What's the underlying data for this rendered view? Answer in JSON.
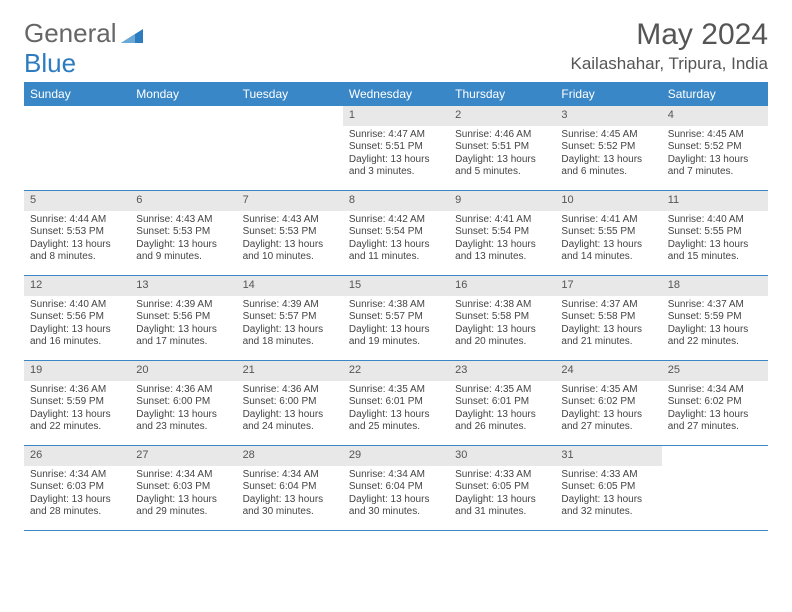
{
  "brand": {
    "part1": "General",
    "part2": "Blue"
  },
  "title": "May 2024",
  "location": "Kailashahar, Tripura, India",
  "colors": {
    "header_bg": "#3a87c7",
    "daynum_bg": "#e8e8e8",
    "border": "#3a87c7",
    "brand_gray": "#666666",
    "brand_blue": "#2d7cc0"
  },
  "dow": [
    "Sunday",
    "Monday",
    "Tuesday",
    "Wednesday",
    "Thursday",
    "Friday",
    "Saturday"
  ],
  "weeks": [
    [
      {
        "n": "",
        "sr": "",
        "ss": "",
        "dl": ""
      },
      {
        "n": "",
        "sr": "",
        "ss": "",
        "dl": ""
      },
      {
        "n": "",
        "sr": "",
        "ss": "",
        "dl": ""
      },
      {
        "n": "1",
        "sr": "4:47 AM",
        "ss": "5:51 PM",
        "dl": "13 hours and 3 minutes."
      },
      {
        "n": "2",
        "sr": "4:46 AM",
        "ss": "5:51 PM",
        "dl": "13 hours and 5 minutes."
      },
      {
        "n": "3",
        "sr": "4:45 AM",
        "ss": "5:52 PM",
        "dl": "13 hours and 6 minutes."
      },
      {
        "n": "4",
        "sr": "4:45 AM",
        "ss": "5:52 PM",
        "dl": "13 hours and 7 minutes."
      }
    ],
    [
      {
        "n": "5",
        "sr": "4:44 AM",
        "ss": "5:53 PM",
        "dl": "13 hours and 8 minutes."
      },
      {
        "n": "6",
        "sr": "4:43 AM",
        "ss": "5:53 PM",
        "dl": "13 hours and 9 minutes."
      },
      {
        "n": "7",
        "sr": "4:43 AM",
        "ss": "5:53 PM",
        "dl": "13 hours and 10 minutes."
      },
      {
        "n": "8",
        "sr": "4:42 AM",
        "ss": "5:54 PM",
        "dl": "13 hours and 11 minutes."
      },
      {
        "n": "9",
        "sr": "4:41 AM",
        "ss": "5:54 PM",
        "dl": "13 hours and 13 minutes."
      },
      {
        "n": "10",
        "sr": "4:41 AM",
        "ss": "5:55 PM",
        "dl": "13 hours and 14 minutes."
      },
      {
        "n": "11",
        "sr": "4:40 AM",
        "ss": "5:55 PM",
        "dl": "13 hours and 15 minutes."
      }
    ],
    [
      {
        "n": "12",
        "sr": "4:40 AM",
        "ss": "5:56 PM",
        "dl": "13 hours and 16 minutes."
      },
      {
        "n": "13",
        "sr": "4:39 AM",
        "ss": "5:56 PM",
        "dl": "13 hours and 17 minutes."
      },
      {
        "n": "14",
        "sr": "4:39 AM",
        "ss": "5:57 PM",
        "dl": "13 hours and 18 minutes."
      },
      {
        "n": "15",
        "sr": "4:38 AM",
        "ss": "5:57 PM",
        "dl": "13 hours and 19 minutes."
      },
      {
        "n": "16",
        "sr": "4:38 AM",
        "ss": "5:58 PM",
        "dl": "13 hours and 20 minutes."
      },
      {
        "n": "17",
        "sr": "4:37 AM",
        "ss": "5:58 PM",
        "dl": "13 hours and 21 minutes."
      },
      {
        "n": "18",
        "sr": "4:37 AM",
        "ss": "5:59 PM",
        "dl": "13 hours and 22 minutes."
      }
    ],
    [
      {
        "n": "19",
        "sr": "4:36 AM",
        "ss": "5:59 PM",
        "dl": "13 hours and 22 minutes."
      },
      {
        "n": "20",
        "sr": "4:36 AM",
        "ss": "6:00 PM",
        "dl": "13 hours and 23 minutes."
      },
      {
        "n": "21",
        "sr": "4:36 AM",
        "ss": "6:00 PM",
        "dl": "13 hours and 24 minutes."
      },
      {
        "n": "22",
        "sr": "4:35 AM",
        "ss": "6:01 PM",
        "dl": "13 hours and 25 minutes."
      },
      {
        "n": "23",
        "sr": "4:35 AM",
        "ss": "6:01 PM",
        "dl": "13 hours and 26 minutes."
      },
      {
        "n": "24",
        "sr": "4:35 AM",
        "ss": "6:02 PM",
        "dl": "13 hours and 27 minutes."
      },
      {
        "n": "25",
        "sr": "4:34 AM",
        "ss": "6:02 PM",
        "dl": "13 hours and 27 minutes."
      }
    ],
    [
      {
        "n": "26",
        "sr": "4:34 AM",
        "ss": "6:03 PM",
        "dl": "13 hours and 28 minutes."
      },
      {
        "n": "27",
        "sr": "4:34 AM",
        "ss": "6:03 PM",
        "dl": "13 hours and 29 minutes."
      },
      {
        "n": "28",
        "sr": "4:34 AM",
        "ss": "6:04 PM",
        "dl": "13 hours and 30 minutes."
      },
      {
        "n": "29",
        "sr": "4:34 AM",
        "ss": "6:04 PM",
        "dl": "13 hours and 30 minutes."
      },
      {
        "n": "30",
        "sr": "4:33 AM",
        "ss": "6:05 PM",
        "dl": "13 hours and 31 minutes."
      },
      {
        "n": "31",
        "sr": "4:33 AM",
        "ss": "6:05 PM",
        "dl": "13 hours and 32 minutes."
      },
      {
        "n": "",
        "sr": "",
        "ss": "",
        "dl": ""
      }
    ]
  ],
  "labels": {
    "sunrise": "Sunrise:",
    "sunset": "Sunset:",
    "daylight": "Daylight:"
  }
}
